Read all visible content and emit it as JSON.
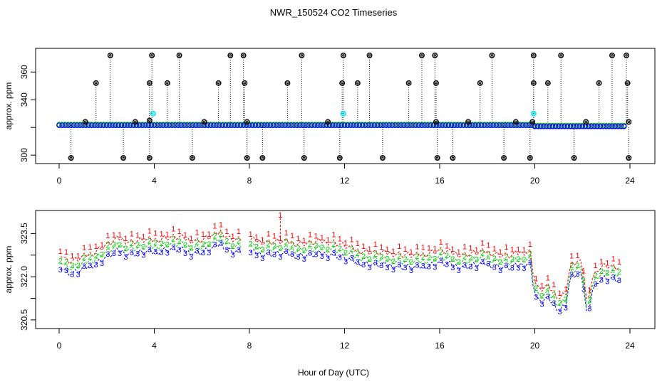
{
  "title": "NWR_150524  CO2 Timeseries",
  "xlabel": "Hour of Day (UTC)",
  "colors": {
    "black": "#000000",
    "red": "#ff0000",
    "green": "#00cc00",
    "blue": "#0000ff",
    "cyan": "#00e5ee"
  },
  "chart_data": [
    {
      "type": "scatter",
      "ylabel": "approx. ppm",
      "xlim": [
        0,
        24
      ],
      "ylim": [
        297,
        374
      ],
      "xticks": [
        0,
        4,
        8,
        12,
        16,
        20,
        24
      ],
      "yticks": [
        300,
        340,
        360
      ],
      "yminor": [
        320
      ],
      "baseline": 321.8,
      "baseline_after_20h": 321.0,
      "spikes_high": [
        {
          "x": 1.55,
          "y": 352
        },
        {
          "x": 2.15,
          "y": 372
        },
        {
          "x": 3.8,
          "y": 352
        },
        {
          "x": 3.9,
          "y": 372
        },
        {
          "x": 4.55,
          "y": 352
        },
        {
          "x": 5.05,
          "y": 372
        },
        {
          "x": 6.7,
          "y": 352
        },
        {
          "x": 7.2,
          "y": 372
        },
        {
          "x": 7.75,
          "y": 372
        },
        {
          "x": 7.8,
          "y": 352
        },
        {
          "x": 9.6,
          "y": 352
        },
        {
          "x": 10.2,
          "y": 372
        },
        {
          "x": 11.9,
          "y": 352
        },
        {
          "x": 11.95,
          "y": 372
        },
        {
          "x": 12.55,
          "y": 352
        },
        {
          "x": 13.05,
          "y": 372
        },
        {
          "x": 14.7,
          "y": 352
        },
        {
          "x": 15.25,
          "y": 372
        },
        {
          "x": 15.8,
          "y": 372
        },
        {
          "x": 15.85,
          "y": 352
        },
        {
          "x": 17.7,
          "y": 352
        },
        {
          "x": 18.2,
          "y": 372
        },
        {
          "x": 19.95,
          "y": 352
        },
        {
          "x": 19.95,
          "y": 372
        },
        {
          "x": 20.55,
          "y": 352
        },
        {
          "x": 21.1,
          "y": 372
        },
        {
          "x": 22.7,
          "y": 352
        },
        {
          "x": 23.25,
          "y": 372
        },
        {
          "x": 23.85,
          "y": 372
        },
        {
          "x": 23.9,
          "y": 352
        }
      ],
      "spikes_mid": [
        {
          "x": 1.1,
          "y": 324
        },
        {
          "x": 3.2,
          "y": 324
        },
        {
          "x": 3.8,
          "y": 325
        },
        {
          "x": 6.1,
          "y": 324
        },
        {
          "x": 7.9,
          "y": 324
        },
        {
          "x": 11.3,
          "y": 324
        },
        {
          "x": 15.85,
          "y": 324
        },
        {
          "x": 17.2,
          "y": 324
        },
        {
          "x": 19.2,
          "y": 324
        },
        {
          "x": 19.9,
          "y": 324
        },
        {
          "x": 22.15,
          "y": 324
        },
        {
          "x": 23.95,
          "y": 324
        }
      ],
      "spikes_low": [
        {
          "x": 0.5,
          "y": 298
        },
        {
          "x": 2.7,
          "y": 298
        },
        {
          "x": 3.8,
          "y": 298
        },
        {
          "x": 5.6,
          "y": 298
        },
        {
          "x": 7.9,
          "y": 298
        },
        {
          "x": 8.55,
          "y": 298
        },
        {
          "x": 10.3,
          "y": 298
        },
        {
          "x": 11.8,
          "y": 298
        },
        {
          "x": 13.6,
          "y": 298
        },
        {
          "x": 15.9,
          "y": 298
        },
        {
          "x": 16.55,
          "y": 298
        },
        {
          "x": 18.7,
          "y": 298
        },
        {
          "x": 19.8,
          "y": 298
        },
        {
          "x": 21.65,
          "y": 298
        },
        {
          "x": 23.95,
          "y": 298
        }
      ],
      "cyan_points": [
        {
          "x": 3.95,
          "y": 330
        },
        {
          "x": 11.95,
          "y": 330
        },
        {
          "x": 19.95,
          "y": 330
        }
      ]
    },
    {
      "type": "line",
      "ylabel": "approx. ppm",
      "xlim": [
        0,
        24
      ],
      "ylim": [
        320.2,
        324.3
      ],
      "xticks": [
        0,
        4,
        8,
        12,
        16,
        20,
        24
      ],
      "yticks": [
        320.5,
        322.0,
        323.5
      ],
      "yminor": [
        321.25,
        322.75
      ],
      "markers": {
        "series1": "1",
        "series2": "2",
        "series3": "3"
      },
      "gaps": [
        [
          7.75,
          8.0
        ]
      ],
      "series3_knots": [
        [
          0,
          322.45
        ],
        [
          0.25,
          322.2
        ],
        [
          0.5,
          322.1
        ],
        [
          1.0,
          322.25
        ],
        [
          1.5,
          322.45
        ],
        [
          2.0,
          322.7
        ],
        [
          2.5,
          322.9
        ],
        [
          3.0,
          322.8
        ],
        [
          3.5,
          322.85
        ],
        [
          4.0,
          322.85
        ],
        [
          4.5,
          322.95
        ],
        [
          5.0,
          322.95
        ],
        [
          5.5,
          322.85
        ],
        [
          6.0,
          322.85
        ],
        [
          6.5,
          323.0
        ],
        [
          6.8,
          323.15
        ],
        [
          7.2,
          322.9
        ],
        [
          7.75,
          322.85
        ],
        [
          8.0,
          322.85
        ],
        [
          8.5,
          322.8
        ],
        [
          9.0,
          322.8
        ],
        [
          9.5,
          322.8
        ],
        [
          10.0,
          322.75
        ],
        [
          10.5,
          322.75
        ],
        [
          11.0,
          322.8
        ],
        [
          11.5,
          322.8
        ],
        [
          12.0,
          322.65
        ],
        [
          12.5,
          322.5
        ],
        [
          13.0,
          322.45
        ],
        [
          13.5,
          322.4
        ],
        [
          14.0,
          322.4
        ],
        [
          14.5,
          322.35
        ],
        [
          15.0,
          322.3
        ],
        [
          15.5,
          322.4
        ],
        [
          16.0,
          322.5
        ],
        [
          16.5,
          322.4
        ],
        [
          17.0,
          322.35
        ],
        [
          17.5,
          322.4
        ],
        [
          18.0,
          322.45
        ],
        [
          18.5,
          322.35
        ],
        [
          19.0,
          322.3
        ],
        [
          19.5,
          322.45
        ],
        [
          19.8,
          322.45
        ],
        [
          20.0,
          321.4
        ],
        [
          20.2,
          321.1
        ],
        [
          20.5,
          321.25
        ],
        [
          20.9,
          321.0
        ],
        [
          21.0,
          320.8
        ],
        [
          21.3,
          321.05
        ],
        [
          21.5,
          322.0
        ],
        [
          21.8,
          322.1
        ],
        [
          22.0,
          322.0
        ],
        [
          22.2,
          320.6
        ],
        [
          22.4,
          321.5
        ],
        [
          22.7,
          321.9
        ],
        [
          23.0,
          321.95
        ],
        [
          23.5,
          321.85
        ],
        [
          23.6,
          321.85
        ]
      ],
      "offsets": {
        "series1": 0.42,
        "series2": 0.18
      },
      "outliers_series1": [
        {
          "x": 9.3,
          "y": 324.05
        }
      ]
    }
  ]
}
